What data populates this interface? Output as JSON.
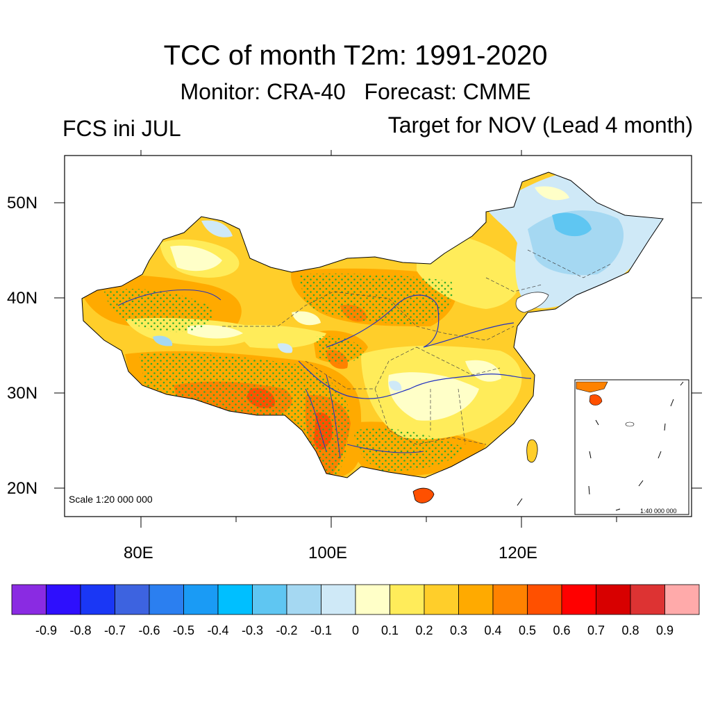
{
  "title": "TCC of month T2m: 1991-2020",
  "subtitle": "Monitor: CRA-40   Forecast: CMME",
  "left_label": "FCS ini JUL",
  "right_label": "Target for NOV (Lead 4 month)",
  "lat_labels": [
    "50N",
    "40N",
    "30N",
    "20N"
  ],
  "lon_labels": [
    "80E",
    "100E",
    "120E"
  ],
  "scale_main": "Scale 1:20 000 000",
  "scale_inset": "1:40 000 000",
  "colorbar": {
    "colors": [
      "#8a2be2",
      "#2e0ffd",
      "#1a37f5",
      "#3d63e0",
      "#2b7ff0",
      "#1a9bf5",
      "#00bfff",
      "#5fc6f2",
      "#a5d8f2",
      "#cfe9f7",
      "#ffffc8",
      "#ffec5a",
      "#ffce2a",
      "#ffaa00",
      "#ff8200",
      "#ff5000",
      "#ff0000",
      "#d80000",
      "#dd3333",
      "#ffaaaa"
    ],
    "labels": [
      "-0.9",
      "-0.8",
      "-0.7",
      "-0.6",
      "-0.5",
      "-0.4",
      "-0.3",
      "-0.2",
      "-0.1",
      "0",
      "0.1",
      "0.2",
      "0.3",
      "0.4",
      "0.5",
      "0.6",
      "0.7",
      "0.8",
      "0.9"
    ]
  }
}
